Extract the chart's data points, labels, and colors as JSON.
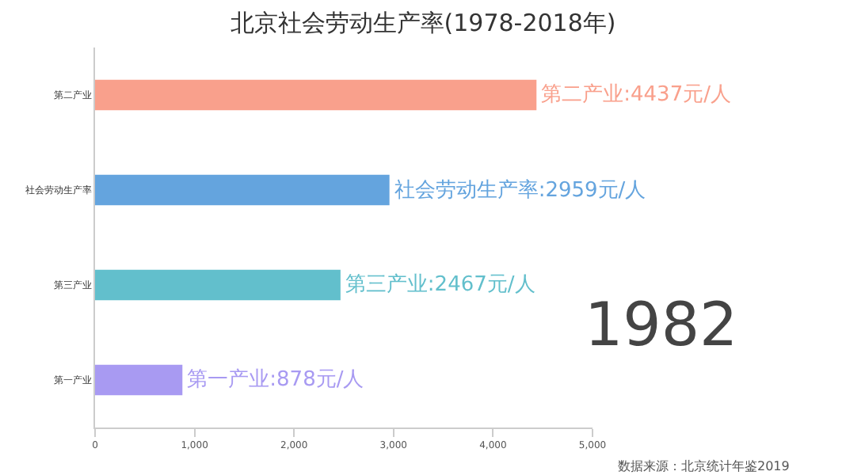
{
  "chart_data": {
    "type": "bar",
    "orientation": "horizontal",
    "title": "北京社会劳动生产率(1978-2018年)",
    "categories": [
      "第二产业",
      "社会劳动生产率",
      "第三产业",
      "第一产业"
    ],
    "values": [
      4437,
      2959,
      2467,
      878
    ],
    "colors": [
      "#f9a08c",
      "#64a4de",
      "#62bfcc",
      "#a89af2"
    ],
    "value_labels": [
      "第二产业:4437元/人",
      "社会劳动生产率:2959元/人",
      "第三产业:2467元/人",
      "第一产业:878元/人"
    ],
    "xlim": [
      0,
      5000
    ],
    "xticks": [
      0,
      {
        "value": 1000,
        "label": "1,000"
      },
      {
        "value": 2000,
        "label": "2,000"
      },
      {
        "value": 3000,
        "label": "3,000"
      },
      {
        "value": 4000,
        "label": "4,000"
      },
      {
        "value": 5000,
        "label": "5,000"
      }
    ],
    "annotations": [
      "1982",
      "数据来源：北京统计年鉴2019"
    ]
  }
}
